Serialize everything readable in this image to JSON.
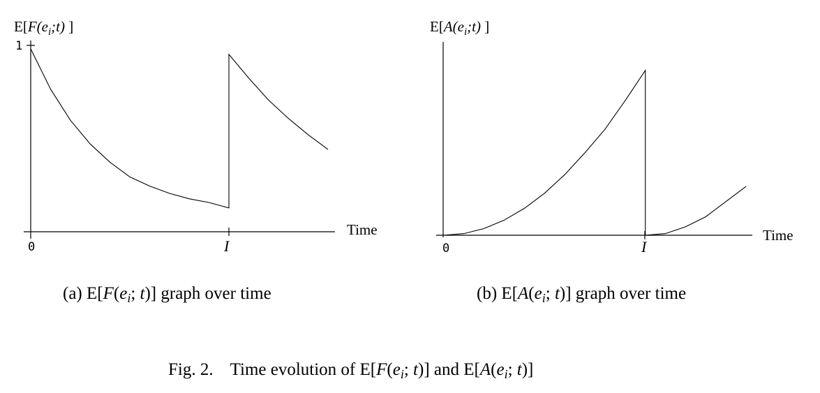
{
  "chart_data": [
    {
      "type": "line",
      "ylabel": "E[F(e_i;t)]",
      "xlabel": "Time",
      "x_ticks": [
        "0",
        "I"
      ],
      "y_ticks": [
        "1"
      ],
      "caption": "(a) E[F(e_i; t)] graph over time",
      "series": [
        {
          "points": [
            [
              0,
              1.0
            ],
            [
              0.1,
              0.78
            ],
            [
              0.2,
              0.61
            ],
            [
              0.3,
              0.48
            ],
            [
              0.4,
              0.38
            ],
            [
              0.5,
              0.3
            ],
            [
              0.6,
              0.25
            ],
            [
              0.7,
              0.21
            ],
            [
              0.8,
              0.18
            ],
            [
              0.9,
              0.16
            ],
            [
              1.0,
              0.13
            ],
            [
              1.0,
              0.97
            ],
            [
              1.1,
              0.84
            ],
            [
              1.2,
              0.72
            ],
            [
              1.3,
              0.62
            ],
            [
              1.4,
              0.53
            ],
            [
              1.5,
              0.45
            ]
          ]
        }
      ],
      "xlim": [
        0,
        1.5
      ],
      "ylim": [
        0,
        1.0
      ]
    },
    {
      "type": "line",
      "ylabel": "E[A(e_i;t)]",
      "xlabel": "Time",
      "x_ticks": [
        "0",
        "I"
      ],
      "y_ticks": [],
      "caption": "(b) E[A(e_i; t)] graph over time",
      "series": [
        {
          "points": [
            [
              0,
              0
            ],
            [
              0.1,
              0.01
            ],
            [
              0.2,
              0.04
            ],
            [
              0.3,
              0.09
            ],
            [
              0.4,
              0.16
            ],
            [
              0.5,
              0.25
            ],
            [
              0.6,
              0.36
            ],
            [
              0.7,
              0.49
            ],
            [
              0.8,
              0.63
            ],
            [
              0.9,
              0.8
            ],
            [
              1.0,
              0.98
            ],
            [
              1.0,
              0
            ],
            [
              1.1,
              0.01
            ],
            [
              1.2,
              0.05
            ],
            [
              1.3,
              0.11
            ],
            [
              1.4,
              0.2
            ],
            [
              1.5,
              0.29
            ]
          ]
        }
      ],
      "xlim": [
        0,
        1.5
      ],
      "ylim": [
        0,
        1.0
      ]
    }
  ],
  "figure_caption": {
    "prefix": "Fig. 2.",
    "text_1": "Time evolution of E[",
    "F": "F",
    "args": "(e",
    "sub": "i",
    "end": "; t)]",
    "and": " and E[",
    "A": "A"
  }
}
